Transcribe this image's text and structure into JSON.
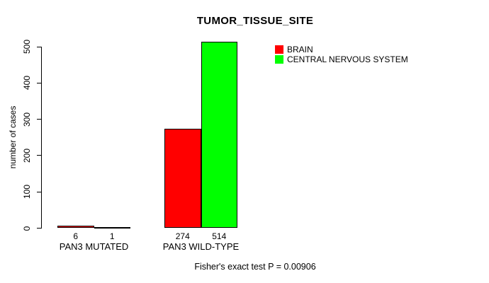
{
  "chart_data": {
    "type": "bar",
    "title": "TUMOR_TISSUE_SITE",
    "categories": [
      "PAN3 MUTATED",
      "PAN3 WILD-TYPE"
    ],
    "series": [
      {
        "name": "BRAIN",
        "color": "#ff0000",
        "values": [
          6,
          274
        ]
      },
      {
        "name": "CENTRAL NERVOUS SYSTEM",
        "color": "#00ff00",
        "values": [
          1,
          514
        ]
      }
    ],
    "xlabel": "",
    "ylabel": "number of cases",
    "ylim": [
      0,
      500
    ],
    "yticks": [
      0,
      100,
      200,
      300,
      400,
      500
    ],
    "bar_value_labels": [
      [
        6,
        1
      ],
      [
        274,
        514
      ]
    ],
    "grid": false,
    "legend_position": "top-right-inside",
    "annotation": "Fisher's exact test P = 0.00906"
  }
}
